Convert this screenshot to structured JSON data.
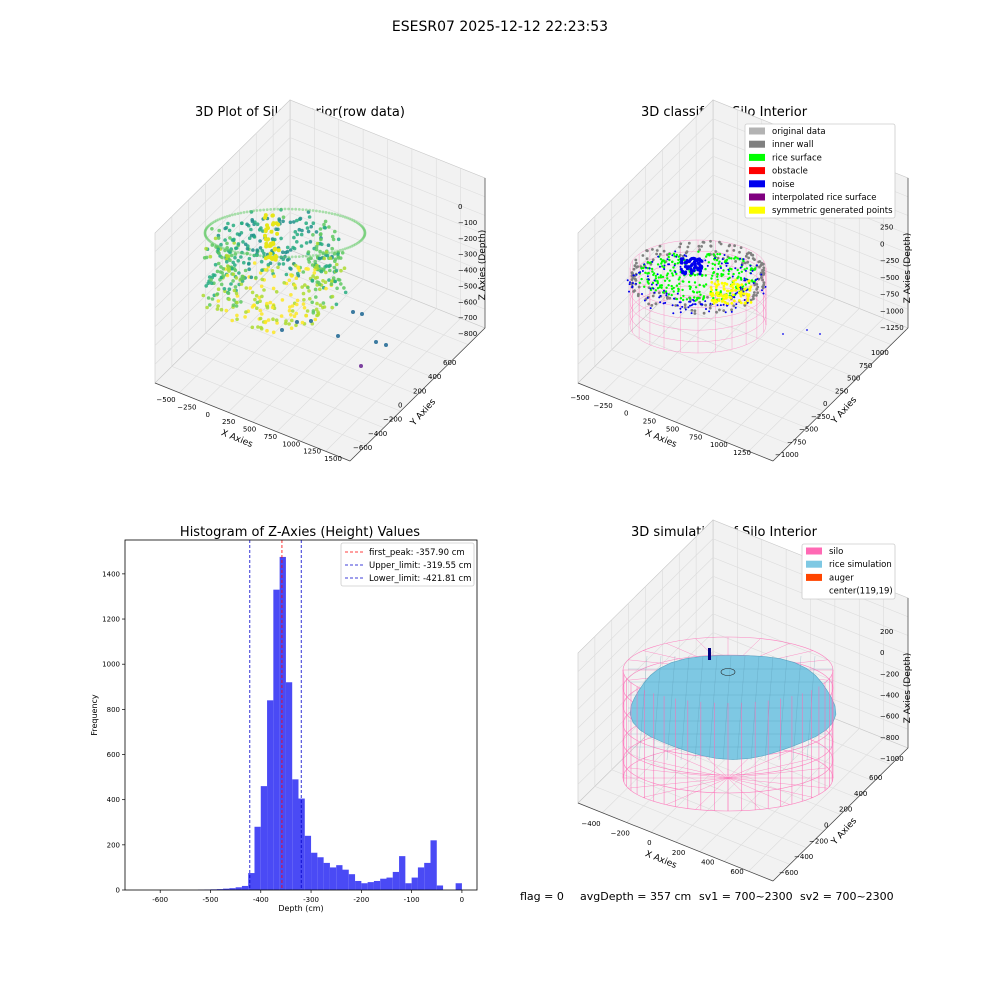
{
  "figure_title": "ESESR07 2025-12-12 22:23:53",
  "colors": {
    "viridis": [
      "#440154",
      "#3b528b",
      "#21918c",
      "#27ad81",
      "#5ec962",
      "#addc30",
      "#fde725"
    ],
    "classify": {
      "original": "#b3b3b3",
      "inner_wall": "#808080",
      "rice_surface": "#00ff00",
      "obstacle": "#ff0000",
      "noise": "#0000ee",
      "interpolated": "#800080",
      "symmetric": "#ffff00",
      "silo_wire": "#ff69b4"
    },
    "simulation": {
      "silo": "#ff69b4",
      "rice": "#7ec8e3",
      "auger": "#ff4500",
      "center": "#ffffff"
    },
    "hist_bar": "#4a4af5",
    "first_peak_line": "#ff0000",
    "limit_lines": "#0000cc",
    "pane": "#f2f2f2",
    "grid": "#dcdcdc"
  },
  "panel1": {
    "title": "3D Plot of Silo Interior(row data)",
    "xlabel": "X Axies",
    "ylabel": "Y Axies",
    "zlabel": "Z Axies (Depth)",
    "xticks": [
      "−500",
      "−250",
      "0",
      "250",
      "500",
      "750",
      "1000",
      "1250",
      "1500"
    ],
    "yticks": [
      "600",
      "400",
      "200",
      "0",
      "−200",
      "−400",
      "−600"
    ],
    "zticks": [
      "0",
      "−100",
      "−200",
      "−300",
      "−400",
      "−500",
      "−600",
      "−700",
      "−800"
    ]
  },
  "panel2": {
    "title": "3D classify of Silo Interior",
    "xlabel": "X Axies",
    "ylabel": "Y Axies",
    "zlabel": "Z Axies (Depth)",
    "xticks": [
      "−500",
      "−250",
      "0",
      "250",
      "500",
      "750",
      "1000",
      "1250"
    ],
    "yticks": [
      "1000",
      "750",
      "500",
      "250",
      "0",
      "−250",
      "−500",
      "−750",
      "−1000"
    ],
    "zticks": [
      "500",
      "250",
      "0",
      "−250",
      "−500",
      "−750",
      "−1000",
      "−1250"
    ],
    "legend": [
      {
        "label": "original data",
        "color": "#b3b3b3"
      },
      {
        "label": "inner wall",
        "color": "#808080"
      },
      {
        "label": "rice surface",
        "color": "#00ff00"
      },
      {
        "label": "obstacle",
        "color": "#ff0000"
      },
      {
        "label": "noise",
        "color": "#0000ee"
      },
      {
        "label": "interpolated rice surface",
        "color": "#800080"
      },
      {
        "label": "symmetric generated points",
        "color": "#ffff00"
      }
    ]
  },
  "panel4": {
    "title": "3D simulation of Silo Interior",
    "xlabel": "X Axies",
    "ylabel": "Y Axies",
    "zlabel": "Z Axies (Depth)",
    "xticks": [
      "−400",
      "−200",
      "0",
      "200",
      "400",
      "600"
    ],
    "yticks": [
      "600",
      "400",
      "200",
      "0",
      "−200",
      "−400",
      "−600"
    ],
    "zticks": [
      "200",
      "0",
      "−200",
      "−400",
      "−600",
      "−800",
      "−1000"
    ],
    "legend": [
      {
        "label": "silo",
        "color": "#ff69b4"
      },
      {
        "label": "rice simulation",
        "color": "#7ec8e3"
      },
      {
        "label": "auger",
        "color": "#ff4500"
      },
      {
        "label": "center(119,19)",
        "color": "#ffffff"
      }
    ]
  },
  "status_line": {
    "flag": "flag = 0",
    "avg_depth": "avgDepth = 357 cm",
    "sv1": "sv1 = 700~2300",
    "sv2": "sv2 = 700~2300"
  },
  "chart_data": [
    {
      "type": "scatter",
      "title": "3D Plot of Silo Interior(row data)",
      "xlabel": "X Axies",
      "ylabel": "Y Axies",
      "zlabel": "Z Axies (Depth)",
      "xlim": [
        -600,
        1500
      ],
      "ylim": [
        -650,
        650
      ],
      "zlim": [
        -850,
        50
      ],
      "projection": "3d"
    },
    {
      "type": "scatter",
      "title": "3D classify of Silo Interior",
      "xlabel": "X Axies",
      "ylabel": "Y Axies",
      "zlabel": "Z Axies (Depth)",
      "xlim": [
        -600,
        1300
      ],
      "ylim": [
        -1000,
        1000
      ],
      "zlim": [
        -1300,
        550
      ],
      "projection": "3d",
      "legend": [
        "original data",
        "inner wall",
        "rice surface",
        "obstacle",
        "noise",
        "interpolated rice surface",
        "symmetric generated points"
      ],
      "legend_position": "upper right"
    },
    {
      "type": "bar",
      "title": "Histogram of Z-Axies (Height) Values",
      "xlabel": "Depth (cm)",
      "ylabel": "Frequency",
      "xlim": [
        -670,
        30
      ],
      "ylim": [
        0,
        1550
      ],
      "xticks": [
        -600,
        -500,
        -400,
        -300,
        -200,
        -100,
        0
      ],
      "yticks": [
        0,
        200,
        400,
        600,
        800,
        1000,
        1200,
        1400
      ],
      "bin_width": 12.5,
      "bins": [
        [
          -525,
          -512.5,
          1
        ],
        [
          -512.5,
          -500,
          2
        ],
        [
          -500,
          -487.5,
          3
        ],
        [
          -487.5,
          -475,
          4
        ],
        [
          -475,
          -462.5,
          6
        ],
        [
          -462.5,
          -450,
          8
        ],
        [
          -450,
          -437.5,
          12
        ],
        [
          -437.5,
          -425,
          18
        ],
        [
          -425,
          -412.5,
          75
        ],
        [
          -412.5,
          -400,
          280
        ],
        [
          -400,
          -387.5,
          460
        ],
        [
          -387.5,
          -375,
          840
        ],
        [
          -375,
          -362.5,
          1330
        ],
        [
          -362.5,
          -350,
          1475
        ],
        [
          -350,
          -337.5,
          920
        ],
        [
          -337.5,
          -325,
          490
        ],
        [
          -325,
          -312.5,
          405
        ],
        [
          -312.5,
          -300,
          240
        ],
        [
          -300,
          -287.5,
          165
        ],
        [
          -287.5,
          -275,
          145
        ],
        [
          -275,
          -262.5,
          120
        ],
        [
          -262.5,
          -250,
          100
        ],
        [
          -250,
          -237.5,
          110
        ],
        [
          -237.5,
          -225,
          90
        ],
        [
          -225,
          -212.5,
          70
        ],
        [
          -212.5,
          -200,
          40
        ],
        [
          -200,
          -187.5,
          30
        ],
        [
          -187.5,
          -175,
          35
        ],
        [
          -175,
          -162.5,
          40
        ],
        [
          -162.5,
          -150,
          50
        ],
        [
          -150,
          -137.5,
          55
        ],
        [
          -137.5,
          -125,
          80
        ],
        [
          -125,
          -112.5,
          150
        ],
        [
          -112.5,
          -100,
          30
        ],
        [
          -100,
          -87.5,
          55
        ],
        [
          -87.5,
          -75,
          100
        ],
        [
          -75,
          -62.5,
          120
        ],
        [
          -62.5,
          -50,
          220
        ],
        [
          -50,
          -37.5,
          20
        ],
        [
          -37.5,
          -25,
          0
        ],
        [
          -25,
          -12.5,
          0
        ],
        [
          -12.5,
          0,
          30
        ]
      ],
      "vlines": [
        {
          "label": "first_peak: -357.90 cm",
          "x": -357.9,
          "color": "#ff0000",
          "style": "dashed"
        },
        {
          "label": "Upper_limit: -319.55 cm",
          "x": -319.55,
          "color": "#0000cc",
          "style": "dashed"
        },
        {
          "label": "Lower_limit: -421.81 cm",
          "x": -421.81,
          "color": "#0000cc",
          "style": "dashed"
        }
      ],
      "legend_position": "upper right"
    },
    {
      "type": "surface",
      "title": "3D simulation of Silo Interior",
      "xlabel": "X Axies",
      "ylabel": "Y Axies",
      "zlabel": "Z Axies (Depth)",
      "xlim": [
        -500,
        700
      ],
      "ylim": [
        -650,
        650
      ],
      "zlim": [
        -1050,
        250
      ],
      "projection": "3d",
      "legend": [
        "silo",
        "rice simulation",
        "auger",
        "center(119,19)"
      ],
      "legend_position": "upper right"
    }
  ]
}
